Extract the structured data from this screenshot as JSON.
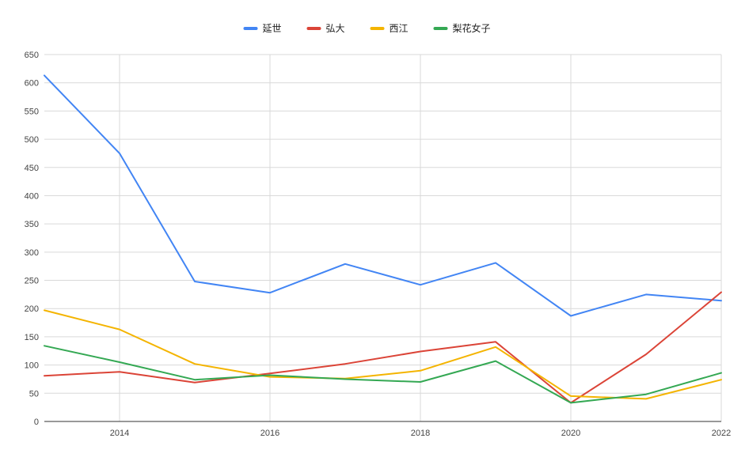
{
  "chart_data": {
    "type": "line",
    "x": [
      2013,
      2014,
      2015,
      2016,
      2017,
      2018,
      2019,
      2020,
      2021,
      2022
    ],
    "x_ticks": [
      "2014",
      "2016",
      "2018",
      "2020",
      "2022"
    ],
    "xlim": [
      2013,
      2022
    ],
    "ylim": [
      0,
      650
    ],
    "y_ticks": [
      "0",
      "50",
      "100",
      "150",
      "200",
      "250",
      "300",
      "350",
      "400",
      "450",
      "500",
      "550",
      "600",
      "650"
    ],
    "grid": true,
    "legend_position": "top-center",
    "series": [
      {
        "name": "延世",
        "color": "#4285F4",
        "values": [
          613,
          475,
          248,
          228,
          279,
          242,
          281,
          187,
          225,
          214
        ]
      },
      {
        "name": "弘大",
        "color": "#DB4437",
        "values": [
          81,
          88,
          69,
          85,
          102,
          124,
          141,
          33,
          119,
          229
        ]
      },
      {
        "name": "西江",
        "color": "#F4B400",
        "values": [
          197,
          163,
          102,
          79,
          76,
          90,
          132,
          45,
          40,
          74
        ]
      },
      {
        "name": "梨花女子",
        "color": "#34A853",
        "values": [
          134,
          105,
          74,
          82,
          75,
          70,
          107,
          33,
          48,
          86
        ]
      }
    ]
  }
}
